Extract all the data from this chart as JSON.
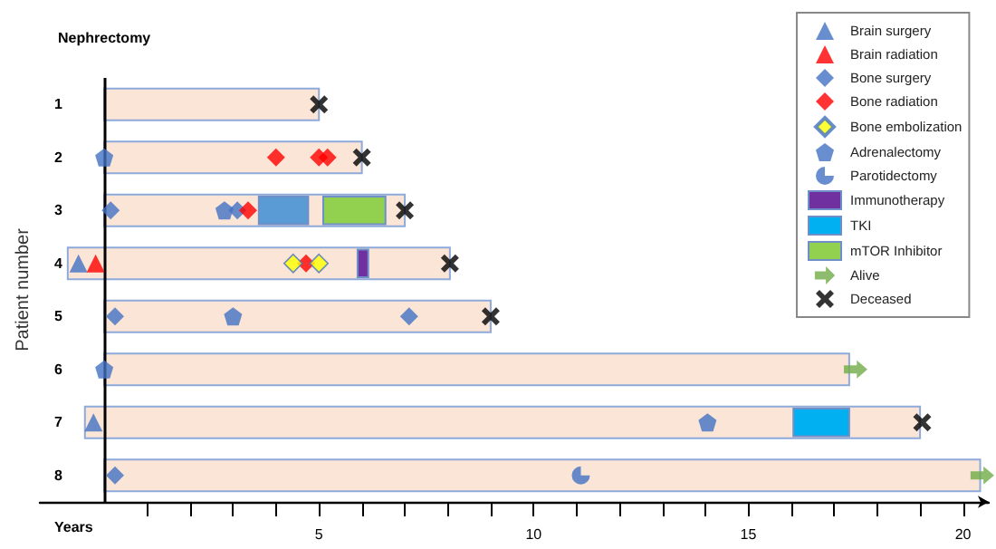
{
  "chart_data": {
    "type": "bar",
    "orientation": "horizontal",
    "xlabel": "Years",
    "ylabel": "Patient number",
    "categories": [
      "1",
      "2",
      "3",
      "4",
      "5",
      "6",
      "7",
      "8"
    ],
    "xlim": [
      -1.5,
      20.6
    ],
    "xticks": [
      {
        "value": 1,
        "label": null
      },
      {
        "value": 2,
        "label": null
      },
      {
        "value": 3,
        "label": null
      },
      {
        "value": 4,
        "label": null
      },
      5,
      {
        "value": 6,
        "label": null
      },
      {
        "value": 7,
        "label": null
      },
      {
        "value": 8,
        "label": null
      },
      {
        "value": 9,
        "label": null
      },
      10,
      {
        "value": 11,
        "label": null
      },
      {
        "value": 12,
        "label": null
      },
      {
        "value": 13,
        "label": null
      },
      {
        "value": 14,
        "label": null
      },
      15,
      {
        "value": 16,
        "label": null
      },
      {
        "value": 17,
        "label": null
      },
      {
        "value": 18,
        "label": null
      },
      {
        "value": 19,
        "label": null
      },
      20
    ],
    "grid": false,
    "legend": "top right",
    "ref_lines": [
      {
        "axis": "x",
        "value": 0,
        "label": "Nephrectomy",
        "color": "#000000"
      }
    ],
    "series": [
      {
        "color": "#fbe5d6",
        "base": [
          0,
          0,
          0,
          -0.85,
          0,
          0,
          -0.45,
          0
        ],
        "values": [
          5.0,
          6.0,
          7.0,
          8.9,
          9.0,
          17.35,
          19.45,
          20.4
        ]
      },
      {
        "type": "scatter",
        "name": "Brain surgery",
        "marker": "triangle",
        "color": "#4472c4",
        "x": [
          "4",
          "7"
        ],
        "values": [
          -0.6,
          -0.25
        ]
      },
      {
        "type": "scatter",
        "name": "Brain radiation",
        "marker": "triangle",
        "color": "#ff0000",
        "x": [
          "4"
        ],
        "values": [
          -0.2
        ]
      },
      {
        "type": "scatter",
        "name": "Bone surgery",
        "marker": "diamond",
        "color": "#4472c4",
        "x": [
          "3",
          "3",
          "5",
          "5",
          "8"
        ],
        "values": [
          0.15,
          3.1,
          0.25,
          7.1,
          0.25
        ]
      },
      {
        "type": "scatter",
        "name": "Bone radiation",
        "marker": "diamond",
        "color": "#ff0000",
        "x": [
          "2",
          "2",
          "2",
          "3",
          "4"
        ],
        "values": [
          4.0,
          5.0,
          5.2,
          3.35,
          4.7
        ]
      },
      {
        "type": "scatter",
        "name": "Bone embolization",
        "marker": "diamond",
        "color": "#ffff00",
        "x": [
          "4",
          "4"
        ],
        "values": [
          4.4,
          5.0
        ]
      },
      {
        "type": "scatter",
        "name": "Adrenalectomy",
        "color": "#4472c4",
        "x": [
          "2",
          "3",
          "5",
          "6",
          "7"
        ],
        "values": [
          0,
          2.8,
          3.0,
          0,
          14.05
        ]
      },
      {
        "type": "scatter",
        "name": "Parotidectomy",
        "color": "#4472c4",
        "x": [
          "8"
        ],
        "values": [
          11.1
        ]
      },
      {
        "name": "Immunotherapy",
        "color": "#7030a0",
        "base": [
          null,
          null,
          null,
          5.9,
          null,
          null,
          null,
          null
        ],
        "values": [
          null,
          null,
          null,
          0.25,
          null,
          null,
          null,
          null
        ]
      },
      {
        "name": "TKI",
        "color": "#00b0f0",
        "colors": [
          null,
          null,
          "#5b9bd5",
          null,
          null,
          null,
          "#00b0f0",
          null
        ],
        "base": [
          null,
          null,
          3.6,
          null,
          null,
          null,
          16.05,
          null
        ],
        "values": [
          null,
          null,
          1.15,
          null,
          null,
          null,
          1.3,
          null
        ]
      },
      {
        "name": "mTOR Inhibitor",
        "color": "#92d050",
        "base": [
          null,
          null,
          5.1,
          null,
          null,
          null,
          null,
          null
        ],
        "values": [
          null,
          null,
          1.45,
          null,
          null,
          null,
          null,
          null
        ]
      },
      {
        "type": "scatter",
        "name": "Alive",
        "color": "#70ad47",
        "x": [
          "6",
          "8"
        ],
        "values": [
          17.5,
          20.45
        ]
      },
      {
        "type": "scatter",
        "name": "Deceased",
        "marker": "cross",
        "color": "#000000",
        "x": [
          "1",
          "2",
          "3",
          "4",
          "5",
          "7"
        ],
        "values": [
          5.0,
          6.0,
          7.0,
          8.05,
          9.0,
          19.05
        ]
      }
    ]
  }
}
